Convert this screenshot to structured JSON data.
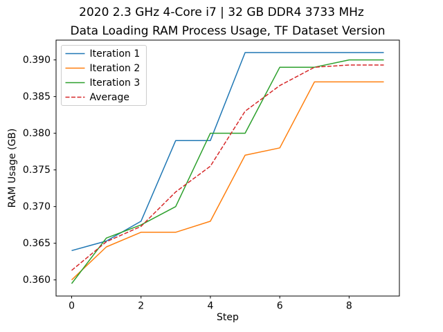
{
  "figure": {
    "suptitle": "2020 2.3 GHz 4-Core i7 | 32 GB DDR4 3733 MHz"
  },
  "colors": {
    "background": "#ffffff",
    "text": "#000000",
    "spine": "#000000",
    "legend_border": "#cccccc",
    "series_blue": "#1f77b4",
    "series_orange": "#ff7f0e",
    "series_green": "#2ca02c",
    "series_red": "#d62728"
  },
  "chart_data": {
    "type": "line",
    "title": "Data Loading RAM Process Usage, TF Dataset Version",
    "xlabel": "Step",
    "ylabel": "RAM Usage (GB)",
    "x": [
      0,
      1,
      2,
      3,
      4,
      5,
      6,
      7,
      8,
      9
    ],
    "series": [
      {
        "name": "Iteration 1",
        "color": "#1f77b4",
        "style": "solid",
        "values": [
          0.364,
          0.3653,
          0.368,
          0.379,
          0.379,
          0.391,
          0.391,
          0.391,
          0.391,
          0.391
        ]
      },
      {
        "name": "Iteration 2",
        "color": "#ff7f0e",
        "style": "solid",
        "values": [
          0.36,
          0.3645,
          0.3665,
          0.3665,
          0.368,
          0.377,
          0.378,
          0.387,
          0.387,
          0.387
        ]
      },
      {
        "name": "Iteration 3",
        "color": "#2ca02c",
        "style": "solid",
        "values": [
          0.3595,
          0.3657,
          0.3675,
          0.37,
          0.38,
          0.38,
          0.389,
          0.389,
          0.39,
          0.39
        ]
      },
      {
        "name": "Average",
        "color": "#d62728",
        "style": "dashed",
        "values": [
          0.3613,
          0.3652,
          0.3673,
          0.372,
          0.3755,
          0.383,
          0.3865,
          0.389,
          0.3893,
          0.3893
        ]
      }
    ],
    "xlim": [
      -0.45,
      9.45
    ],
    "ylim": [
      0.3578,
      0.3927
    ],
    "xticks": [
      0,
      2,
      4,
      6,
      8
    ],
    "xtick_labels": [
      "0",
      "2",
      "4",
      "6",
      "8"
    ],
    "yticks": [
      0.36,
      0.365,
      0.37,
      0.375,
      0.38,
      0.385,
      0.39
    ],
    "ytick_labels": [
      "0.360",
      "0.365",
      "0.370",
      "0.375",
      "0.380",
      "0.385",
      "0.390"
    ],
    "grid": false,
    "legend_position": "upper left"
  }
}
